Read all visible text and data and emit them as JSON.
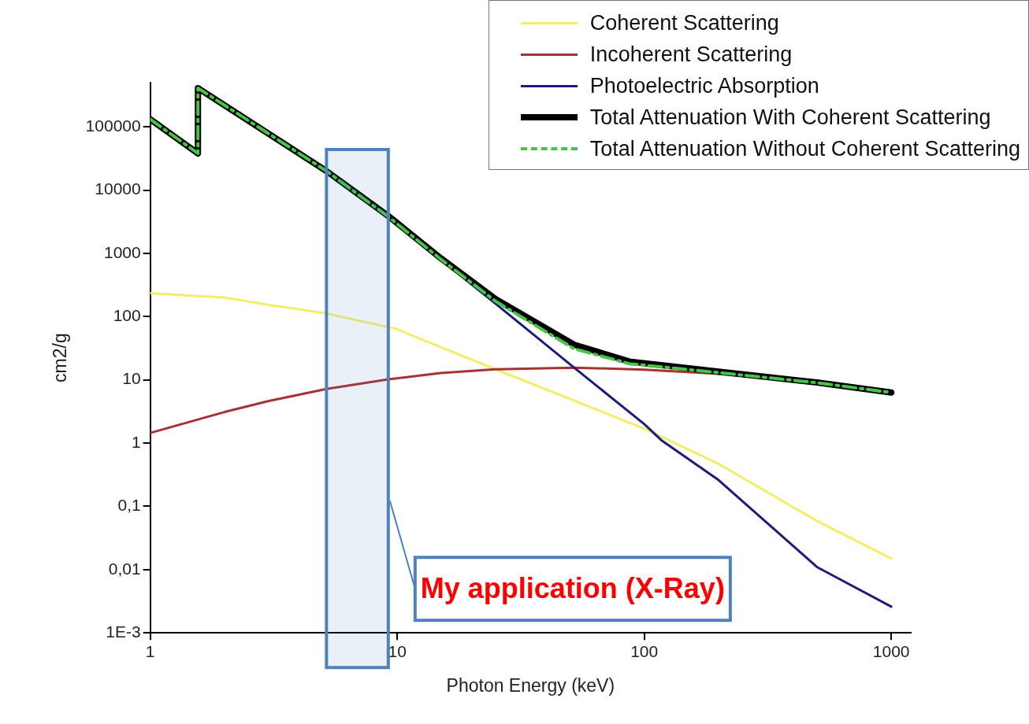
{
  "chart_data": {
    "type": "line",
    "xlabel": "Photon Energy (keV)",
    "ylabel": "cm2/g",
    "log": "xy",
    "xlim": [
      1,
      1200
    ],
    "xticks": [
      1,
      10,
      100,
      1000
    ],
    "ylim": [
      0.001,
      500000
    ],
    "yticks": [
      {
        "value": 0.001,
        "label": "1E-3"
      },
      {
        "value": 0.01,
        "label": "0,01"
      },
      {
        "value": 0.1,
        "label": "0,1"
      },
      1,
      10,
      100,
      1000,
      10000,
      100000
    ],
    "grid": false,
    "legend": "top right",
    "marker": "none",
    "line_style": "solid",
    "series": [
      {
        "name": "Coherent Scattering",
        "color": "#f2ee6a",
        "x": [
          1,
          2,
          3,
          5.17,
          9.9,
          15,
          25,
          50,
          100,
          200,
          500,
          1000
        ],
        "values": [
          235,
          200,
          154,
          112,
          64,
          33,
          14.7,
          5,
          1.7,
          0.47,
          0.059,
          0.015
        ]
      },
      {
        "name": "Incoherent Scattering",
        "color": "#a83232",
        "x": [
          1,
          2,
          3,
          5.17,
          9.2,
          15,
          25,
          52,
          100,
          200,
          500,
          1000
        ],
        "values": [
          1.45,
          3.1,
          4.6,
          7.2,
          10.2,
          12.8,
          14.7,
          15.6,
          14.5,
          12.5,
          9,
          6.3
        ]
      },
      {
        "name": "Photoelectric Absorption",
        "color": "#1c1c7a",
        "x": [
          5.17,
          9.2,
          15,
          25,
          52,
          100,
          118,
          200,
          500,
          1000
        ],
        "values": [
          20000,
          3800,
          790,
          160,
          15.6,
          2,
          1.09,
          0.26,
          0.011,
          0.0026
        ]
      },
      {
        "name": "Total Attenuation With Coherent Scattering",
        "color": "#000000",
        "x": [
          1,
          1.56,
          1.56,
          5.17,
          9.2,
          15,
          25,
          52,
          87,
          200,
          500,
          1000
        ],
        "values": [
          132000,
          38000,
          410000,
          20000,
          3900,
          840,
          190,
          36,
          19.5,
          13.5,
          9.1,
          6.3
        ]
      },
      {
        "name": "Total Attenuation Without Coherent Scattering",
        "color": "#45c545",
        "line_style": "dashed",
        "x": [
          1,
          1.56,
          1.56,
          5.17,
          9.2,
          15,
          25,
          52,
          87,
          200,
          500,
          1000
        ],
        "values": [
          132000,
          38000,
          410000,
          20000,
          3800,
          810,
          175,
          31,
          18,
          13,
          9,
          6.3
        ]
      }
    ],
    "bands": [
      {
        "axis": "x",
        "from": 5.17,
        "to": 9.2,
        "label": "My application (X-Ray)",
        "color": "#4f81bd"
      }
    ]
  }
}
